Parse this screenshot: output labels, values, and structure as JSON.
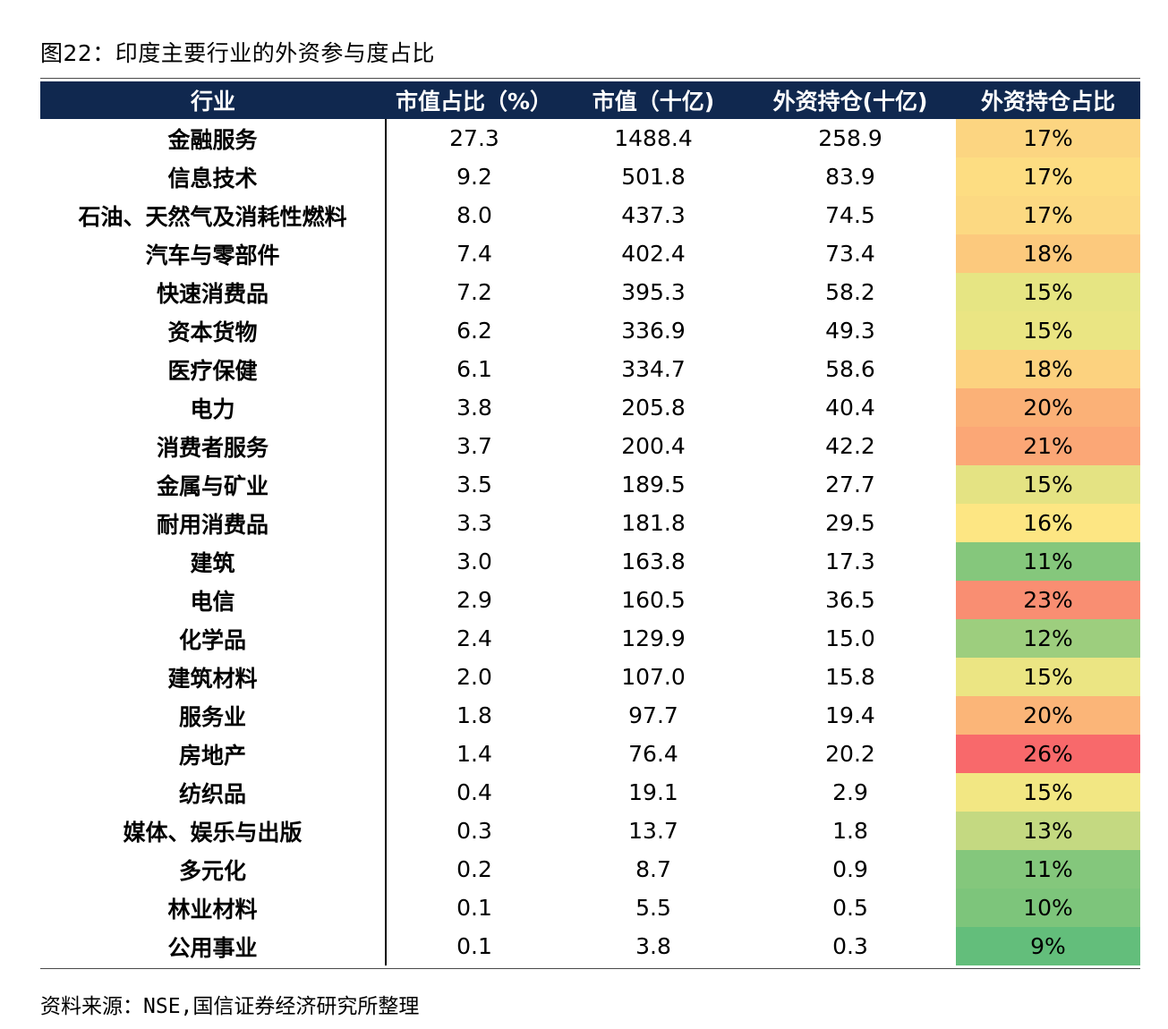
{
  "title": "图22：印度主要行业的外资参与度占比",
  "source": "资料来源：NSE,国信证券经济研究所整理",
  "chart_data": {
    "type": "table",
    "columns": [
      "行业",
      "市值占比（%）",
      "市值（十亿)",
      "外资持仓(十亿)",
      "外资持仓占比"
    ],
    "rows": [
      {
        "industry": "金融服务",
        "share": "27.3",
        "mcap": "1488.4",
        "foreign": "258.9",
        "pct": "17%",
        "color": "#fcd581"
      },
      {
        "industry": "信息技术",
        "share": "9.2",
        "mcap": "501.8",
        "foreign": "83.9",
        "pct": "17%",
        "color": "#fddd82"
      },
      {
        "industry": "石油、天然气及消耗性燃料",
        "share": "8.0",
        "mcap": "437.3",
        "foreign": "74.5",
        "pct": "17%",
        "color": "#fcd982"
      },
      {
        "industry": "汽车与零部件",
        "share": "7.4",
        "mcap": "402.4",
        "foreign": "73.4",
        "pct": "18%",
        "color": "#fcc97d"
      },
      {
        "industry": "快速消费品",
        "share": "7.2",
        "mcap": "395.3",
        "foreign": "58.2",
        "pct": "15%",
        "color": "#e6e583"
      },
      {
        "industry": "资本货物",
        "share": "6.2",
        "mcap": "336.9",
        "foreign": "49.3",
        "pct": "15%",
        "color": "#eae583"
      },
      {
        "industry": "医疗保健",
        "share": "6.1",
        "mcap": "334.7",
        "foreign": "58.6",
        "pct": "18%",
        "color": "#fcd27f"
      },
      {
        "industry": "电力",
        "share": "3.8",
        "mcap": "205.8",
        "foreign": "40.4",
        "pct": "20%",
        "color": "#fbb177"
      },
      {
        "industry": "消费者服务",
        "share": "3.7",
        "mcap": "200.4",
        "foreign": "42.2",
        "pct": "21%",
        "color": "#fba776"
      },
      {
        "industry": "金属与矿业",
        "share": "3.5",
        "mcap": "189.5",
        "foreign": "27.7",
        "pct": "15%",
        "color": "#e4e383"
      },
      {
        "industry": "耐用消费品",
        "share": "3.3",
        "mcap": "181.8",
        "foreign": "29.5",
        "pct": "16%",
        "color": "#fde683"
      },
      {
        "industry": "建筑",
        "share": "3.0",
        "mcap": "163.8",
        "foreign": "17.3",
        "pct": "11%",
        "color": "#85c77c"
      },
      {
        "industry": "电信",
        "share": "2.9",
        "mcap": "160.5",
        "foreign": "36.5",
        "pct": "23%",
        "color": "#f98e72"
      },
      {
        "industry": "化学品",
        "share": "2.4",
        "mcap": "129.9",
        "foreign": "15.0",
        "pct": "12%",
        "color": "#9dce7e"
      },
      {
        "industry": "建筑材料",
        "share": "2.0",
        "mcap": "107.0",
        "foreign": "15.8",
        "pct": "15%",
        "color": "#ebe583"
      },
      {
        "industry": "服务业",
        "share": "1.8",
        "mcap": "97.7",
        "foreign": "19.4",
        "pct": "20%",
        "color": "#fbb578"
      },
      {
        "industry": "房地产",
        "share": "1.4",
        "mcap": "76.4",
        "foreign": "20.2",
        "pct": "26%",
        "color": "#f8696b"
      },
      {
        "industry": "纺织品",
        "share": "0.4",
        "mcap": "19.1",
        "foreign": "2.9",
        "pct": "15%",
        "color": "#f2e783"
      },
      {
        "industry": "媒体、娱乐与出版",
        "share": "0.3",
        "mcap": "13.7",
        "foreign": "1.8",
        "pct": "13%",
        "color": "#c4d981"
      },
      {
        "industry": "多元化",
        "share": "0.2",
        "mcap": "8.7",
        "foreign": "0.9",
        "pct": "11%",
        "color": "#84c77c"
      },
      {
        "industry": "林业材料",
        "share": "0.1",
        "mcap": "5.5",
        "foreign": "0.5",
        "pct": "10%",
        "color": "#7dc57b"
      },
      {
        "industry": "公用事业",
        "share": "0.1",
        "mcap": "3.8",
        "foreign": "0.3",
        "pct": "9%",
        "color": "#63be7b"
      }
    ]
  }
}
